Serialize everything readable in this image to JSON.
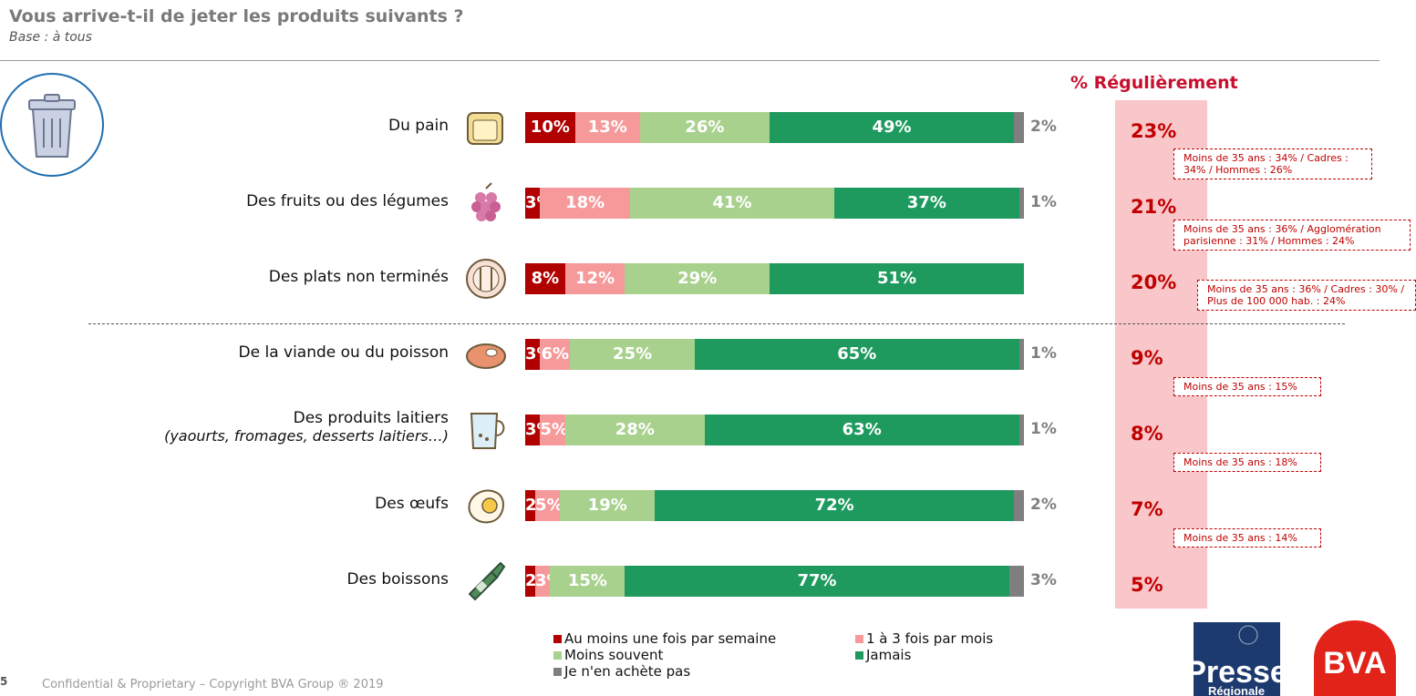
{
  "header": {
    "title": "Vous arrive-t-il de jeter les produits suivants ?",
    "subtitle": "Base : à tous"
  },
  "regulierement_title": "% Régulièrement",
  "colors": {
    "weekly": "#b00000",
    "monthly": "#f6999b",
    "less": "#a9d18e",
    "never": "#1e9a5f",
    "na": "#7f7f7f"
  },
  "chart_data": {
    "type": "bar",
    "orientation": "horizontal-stacked-100",
    "categories": [
      "Du pain",
      "Des fruits ou des légumes",
      "Des plats non terminés",
      "De la viande ou du poisson",
      "Des produits laitiers (yaourts, fromages, desserts laitiers…)",
      "Des œufs",
      "Des boissons"
    ],
    "series": [
      {
        "name": "Au moins une fois par semaine",
        "values": [
          10,
          3,
          8,
          3,
          3,
          2,
          2
        ]
      },
      {
        "name": "1 à 3 fois par mois",
        "values": [
          13,
          18,
          12,
          6,
          5,
          5,
          3
        ]
      },
      {
        "name": "Moins souvent",
        "values": [
          26,
          41,
          29,
          25,
          28,
          19,
          15
        ]
      },
      {
        "name": "Jamais",
        "values": [
          49,
          37,
          51,
          65,
          63,
          72,
          77
        ]
      },
      {
        "name": "Je n'en achète pas",
        "values": [
          2,
          1,
          0,
          1,
          1,
          2,
          3
        ]
      }
    ],
    "regulierement": [
      23,
      21,
      20,
      9,
      8,
      7,
      5
    ],
    "legend_position": "bottom"
  },
  "rows": [
    {
      "label": "Du pain",
      "sublabel": "",
      "icon": "bread-icon",
      "reg": "23%",
      "na_label": "2%",
      "seg_labels": [
        "10%",
        "13%",
        "26%",
        "49%"
      ]
    },
    {
      "label": "Des fruits ou des légumes",
      "sublabel": "",
      "icon": "raspberry-icon",
      "reg": "21%",
      "na_label": "1%",
      "seg_labels": [
        "3%",
        "18%",
        "41%",
        "37%"
      ]
    },
    {
      "label": "Des plats non terminés",
      "sublabel": "",
      "icon": "plate-icon",
      "reg": "20%",
      "na_label": "",
      "seg_labels": [
        "8%",
        "12%",
        "29%",
        "51%"
      ]
    },
    {
      "label": "De la viande ou du poisson",
      "sublabel": "",
      "icon": "steak-icon",
      "reg": "9%",
      "na_label": "1%",
      "seg_labels": [
        "3%",
        "6%",
        "25%",
        "65%"
      ]
    },
    {
      "label": "Des produits laitiers",
      "sublabel": "(yaourts, fromages, desserts laitiers…)",
      "icon": "milk-jug-icon",
      "reg": "8%",
      "na_label": "1%",
      "seg_labels": [
        "3%",
        "5%",
        "28%",
        "63%"
      ]
    },
    {
      "label": "Des œufs",
      "sublabel": "",
      "icon": "fried-egg-icon",
      "reg": "7%",
      "na_label": "2%",
      "seg_labels": [
        "2%",
        "5%",
        "19%",
        "72%"
      ]
    },
    {
      "label": "Des boissons",
      "sublabel": "",
      "icon": "bottle-icon",
      "reg": "5%",
      "na_label": "3%",
      "seg_labels": [
        "2%",
        "3%",
        "15%",
        "77%"
      ]
    }
  ],
  "notes": [
    "Moins de 35 ans : 34% / Cadres : 34% / Hommes : 26%",
    "Moins de 35 ans : 36% / Agglomération parisienne : 31% /  Hommes : 24%",
    "Moins de 35 ans : 36% / Cadres : 30% / Plus de 100 000 hab. : 24%",
    "Moins de 35 ans : 15%",
    "Moins de 35 ans : 18%",
    "Moins de 35 ans : 14%"
  ],
  "legend": [
    {
      "label": "Au moins une fois par semaine",
      "color": "#b00000"
    },
    {
      "label": "1 à 3 fois par mois",
      "color": "#f6999b"
    },
    {
      "label": "Moins souvent",
      "color": "#a9d18e"
    },
    {
      "label": "Jamais",
      "color": "#1e9a5f"
    },
    {
      "label": "Je n'en achète pas",
      "color": "#7f7f7f"
    }
  ],
  "footer": {
    "page": "5",
    "text": "Confidential & Proprietary – Copyright BVA Group ®  2019"
  },
  "logos": {
    "presse": "Presse",
    "presse_sub": "Régionale",
    "bva": "BVA"
  }
}
